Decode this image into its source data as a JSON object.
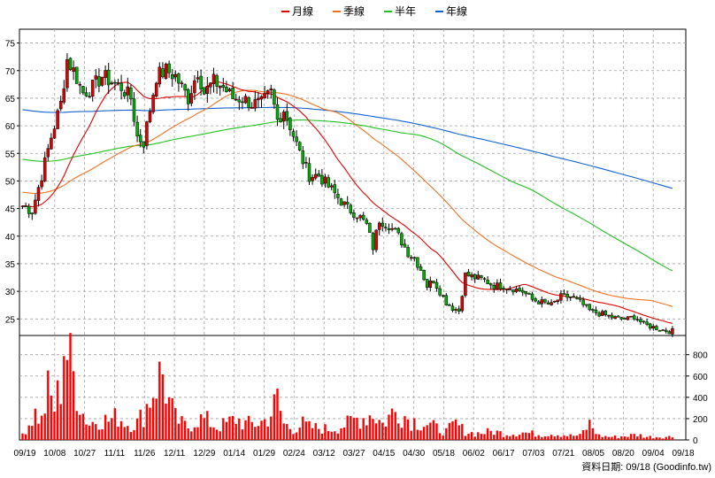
{
  "chart_data": {
    "type": "candlestick",
    "legend": [
      {
        "label": "月線",
        "color": "#e00000"
      },
      {
        "label": "季線",
        "color": "#f07020"
      },
      {
        "label": "半年",
        "color": "#20c020"
      },
      {
        "label": "年線",
        "color": "#1060d0"
      }
    ],
    "price_axis": {
      "ticks": [
        25,
        30,
        35,
        40,
        45,
        50,
        55,
        60,
        65,
        70,
        75
      ],
      "ylim": [
        22,
        77.5
      ]
    },
    "volume_axis": {
      "ticks": [
        0,
        200,
        400,
        600,
        800
      ],
      "ylim": [
        0,
        980
      ]
    },
    "x_labels": [
      "09/19",
      "10/08",
      "10/27",
      "11/11",
      "11/26",
      "12/11",
      "12/29",
      "01/14",
      "01/29",
      "02/24",
      "03/12",
      "03/27",
      "04/15",
      "04/30",
      "05/18",
      "06/02",
      "06/17",
      "07/03",
      "07/21",
      "08/05",
      "08/20",
      "09/04",
      "09/18"
    ],
    "close_anchors": [
      [
        0,
        45.5
      ],
      [
        3,
        44.5
      ],
      [
        6,
        51
      ],
      [
        9,
        58
      ],
      [
        12,
        64
      ],
      [
        14,
        72
      ],
      [
        16,
        70
      ],
      [
        19,
        66
      ],
      [
        22,
        67
      ],
      [
        25,
        69
      ],
      [
        28,
        68
      ],
      [
        31,
        67
      ],
      [
        34,
        65
      ],
      [
        36,
        58
      ],
      [
        38,
        57
      ],
      [
        40,
        63
      ],
      [
        42,
        69
      ],
      [
        45,
        70
      ],
      [
        48,
        69
      ],
      [
        50,
        67
      ],
      [
        52,
        65
      ],
      [
        55,
        70
      ],
      [
        57,
        66
      ],
      [
        60,
        68
      ],
      [
        63,
        67
      ],
      [
        66,
        65
      ],
      [
        69,
        65
      ],
      [
        72,
        64
      ],
      [
        75,
        64
      ],
      [
        78,
        66
      ],
      [
        80,
        61
      ],
      [
        82,
        63
      ],
      [
        84,
        60
      ],
      [
        87,
        55
      ],
      [
        90,
        51
      ],
      [
        93,
        51
      ],
      [
        96,
        49
      ],
      [
        99,
        47
      ],
      [
        102,
        45
      ],
      [
        105,
        44
      ],
      [
        108,
        42
      ],
      [
        110,
        38
      ],
      [
        112,
        43
      ],
      [
        115,
        42
      ],
      [
        118,
        40
      ],
      [
        121,
        37
      ],
      [
        123,
        36
      ],
      [
        125,
        34
      ],
      [
        127,
        31
      ],
      [
        129,
        32
      ],
      [
        131,
        30
      ],
      [
        133,
        28
      ],
      [
        135,
        27
      ],
      [
        137,
        26.5
      ],
      [
        139,
        33
      ],
      [
        142,
        32.5
      ],
      [
        145,
        32
      ],
      [
        148,
        31
      ],
      [
        151,
        31
      ],
      [
        154,
        30.5
      ],
      [
        157,
        30
      ],
      [
        160,
        28.5
      ],
      [
        163,
        28
      ],
      [
        166,
        27.5
      ],
      [
        169,
        29
      ],
      [
        172,
        29
      ],
      [
        175,
        28
      ],
      [
        178,
        26.5
      ],
      [
        181,
        26
      ],
      [
        184,
        25.5
      ],
      [
        187,
        25
      ],
      [
        190,
        25
      ],
      [
        192,
        25.5
      ],
      [
        195,
        24
      ],
      [
        198,
        23.5
      ],
      [
        201,
        23
      ],
      [
        203,
        22.8
      ]
    ],
    "volume_profile": [
      [
        0,
        60
      ],
      [
        4,
        250
      ],
      [
        6,
        180
      ],
      [
        8,
        450
      ],
      [
        10,
        300
      ],
      [
        12,
        520
      ],
      [
        13,
        950
      ],
      [
        15,
        700
      ],
      [
        17,
        500
      ],
      [
        19,
        250
      ],
      [
        21,
        150
      ],
      [
        24,
        200
      ],
      [
        27,
        180
      ],
      [
        30,
        220
      ],
      [
        33,
        150
      ],
      [
        36,
        160
      ],
      [
        38,
        250
      ],
      [
        40,
        400
      ],
      [
        42,
        550
      ],
      [
        44,
        620
      ],
      [
        46,
        350
      ],
      [
        48,
        200
      ],
      [
        50,
        150
      ],
      [
        52,
        120
      ],
      [
        55,
        200
      ],
      [
        58,
        180
      ],
      [
        61,
        120
      ],
      [
        64,
        150
      ],
      [
        67,
        200
      ],
      [
        70,
        150
      ],
      [
        73,
        150
      ],
      [
        76,
        180
      ],
      [
        78,
        250
      ],
      [
        80,
        380
      ],
      [
        82,
        150
      ],
      [
        85,
        100
      ],
      [
        88,
        150
      ],
      [
        90,
        120
      ],
      [
        93,
        110
      ],
      [
        96,
        100
      ],
      [
        99,
        120
      ],
      [
        102,
        150
      ],
      [
        105,
        200
      ],
      [
        108,
        220
      ],
      [
        110,
        250
      ],
      [
        113,
        150
      ],
      [
        116,
        250
      ],
      [
        118,
        280
      ],
      [
        121,
        200
      ],
      [
        124,
        170
      ],
      [
        127,
        150
      ],
      [
        130,
        110
      ],
      [
        133,
        80
      ],
      [
        136,
        150
      ],
      [
        139,
        80
      ],
      [
        142,
        60
      ],
      [
        145,
        70
      ],
      [
        148,
        80
      ],
      [
        151,
        60
      ],
      [
        154,
        60
      ],
      [
        157,
        70
      ],
      [
        160,
        60
      ],
      [
        163,
        50
      ],
      [
        166,
        60
      ],
      [
        169,
        50
      ],
      [
        172,
        40
      ],
      [
        175,
        40
      ],
      [
        178,
        150
      ],
      [
        181,
        40
      ],
      [
        184,
        30
      ],
      [
        187,
        30
      ],
      [
        190,
        40
      ],
      [
        193,
        50
      ],
      [
        196,
        30
      ],
      [
        199,
        30
      ],
      [
        203,
        30
      ]
    ],
    "footer": "資料日期: 09/18  (Goodinfo.tw)"
  }
}
